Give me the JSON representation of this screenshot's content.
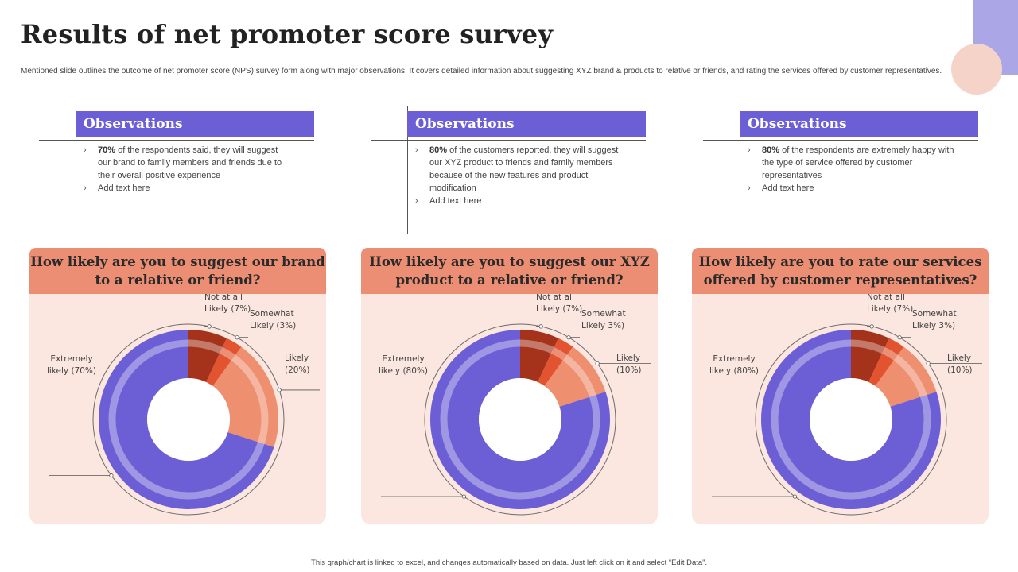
{
  "title": "Results of  net promoter score survey",
  "subtitle": "Mentioned slide outlines the outcome of net promoter score (NPS) survey form along with major observations. It covers detailed information about suggesting XYZ brand & products to relative or friends, and rating the services offered by customer representatives.",
  "observations": [
    {
      "heading": "Observations",
      "items": [
        {
          "bold": "70%",
          "text": " of the respondents said, they will suggest our brand to family members and friends due to their overall positive experience"
        },
        {
          "bold": "",
          "text": "Add text here"
        }
      ]
    },
    {
      "heading": "Observations",
      "items": [
        {
          "bold": "80%",
          "text": " of the customers reported, they will suggest our XYZ product to friends and family members because of the new features and product modification"
        },
        {
          "bold": "",
          "text": "Add text here"
        }
      ]
    },
    {
      "heading": "Observations",
      "items": [
        {
          "bold": "80%",
          "text": " of the respondents are extremely happy with the type of service offered by customer representatives"
        },
        {
          "bold": "",
          "text": "Add text here"
        }
      ]
    }
  ],
  "colors": {
    "not_at_all_likely": "#a5331b",
    "somewhat_likely": "#e2532f",
    "likely": "#ee8f70",
    "extremely_likely": "#6c5fd6"
  },
  "chart_data": [
    {
      "type": "pie",
      "title": "How likely are you to suggest our brand to a relative or friend?",
      "categories": [
        "Not at all Likely",
        "Somewhat Likely",
        "Likely",
        "Extremely likely"
      ],
      "values": [
        7,
        3,
        20,
        70
      ],
      "labels": [
        "Not at all Likely (7%)",
        "Somewhat Likely (3%)",
        "Likely (20%)",
        "Extremely likely (70%)"
      ]
    },
    {
      "type": "pie",
      "title": "How likely are you to suggest our XYZ product to a relative or friend?",
      "categories": [
        "Not at all Likely",
        "Somewhat Likely",
        "Likely",
        "Extremely likely"
      ],
      "values": [
        7,
        3,
        10,
        80
      ],
      "labels": [
        "Not at all Likely (7%)",
        "Somewhat Likely 3%)",
        "Likely (10%)",
        "Extremely likely (80%)"
      ]
    },
    {
      "type": "pie",
      "title": "How likely are you to rate our services offered by customer representatives?",
      "categories": [
        "Not at all Likely",
        "Somewhat Likely",
        "Likely",
        "Extremely likely"
      ],
      "values": [
        7,
        3,
        10,
        80
      ],
      "labels": [
        "Not at all Likely (7%)",
        "Somewhat Likely 3%)",
        "Likely (10%)",
        "Extremely likely (80%)"
      ]
    }
  ],
  "footer": "This graph/chart is linked to excel, and changes automatically based on data. Just left click on it and select “Edit Data”."
}
